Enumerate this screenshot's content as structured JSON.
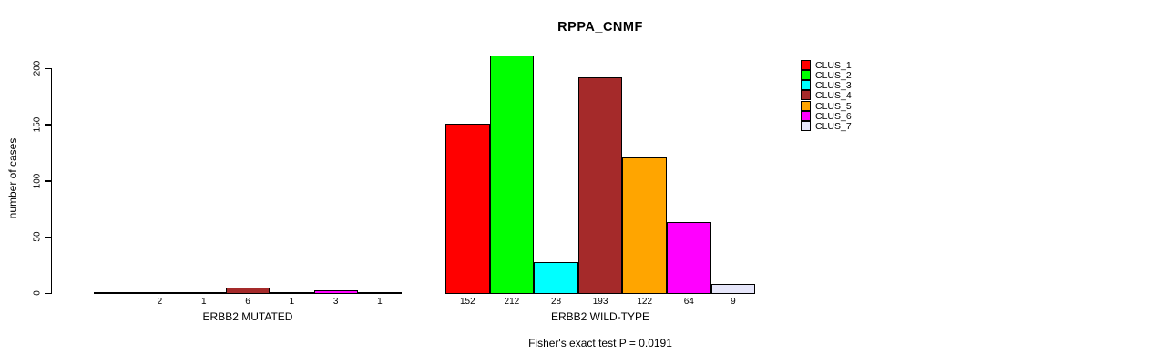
{
  "title": "RPPA_CNMF",
  "y_axis": {
    "label": "number of cases",
    "ticks": [
      "0",
      "50",
      "100",
      "150",
      "200"
    ]
  },
  "footer": "Fisher's exact test P = 0.0191",
  "legend": {
    "items": [
      {
        "label": "CLUS_1",
        "color": "#FF0000"
      },
      {
        "label": "CLUS_2",
        "color": "#00FF00"
      },
      {
        "label": "CLUS_3",
        "color": "#00FFFF"
      },
      {
        "label": "CLUS_4",
        "color": "#A52A2A"
      },
      {
        "label": "CLUS_5",
        "color": "#FFA500"
      },
      {
        "label": "CLUS_6",
        "color": "#FF00FF"
      },
      {
        "label": "CLUS_7",
        "color": "#E6E6FA"
      }
    ]
  },
  "chart_data": {
    "type": "bar",
    "title": "RPPA_CNMF",
    "ylabel": "number of cases",
    "ylim": [
      0,
      220
    ],
    "yticks": [
      0,
      50,
      100,
      150,
      200
    ],
    "grid": false,
    "legend_position": "right",
    "categories": [
      "CLUS_1",
      "CLUS_2",
      "CLUS_3",
      "CLUS_4",
      "CLUS_5",
      "CLUS_6",
      "CLUS_7"
    ],
    "series_colors": [
      "#FF0000",
      "#00FF00",
      "#00FFFF",
      "#A52A2A",
      "#FFA500",
      "#FF00FF",
      "#E6E6FA"
    ],
    "groups": [
      {
        "label": "ERBB2 MUTATED",
        "values": [
          0,
          2,
          1,
          6,
          1,
          3,
          1
        ],
        "bar_labels": [
          "",
          "2",
          "1",
          "6",
          "1",
          "3",
          "1"
        ]
      },
      {
        "label": "ERBB2 WILD-TYPE",
        "values": [
          152,
          212,
          28,
          193,
          122,
          64,
          9
        ],
        "bar_labels": [
          "152",
          "212",
          "28",
          "193",
          "122",
          "64",
          "9"
        ]
      }
    ],
    "annotation": "Fisher's exact test P = 0.0191"
  }
}
